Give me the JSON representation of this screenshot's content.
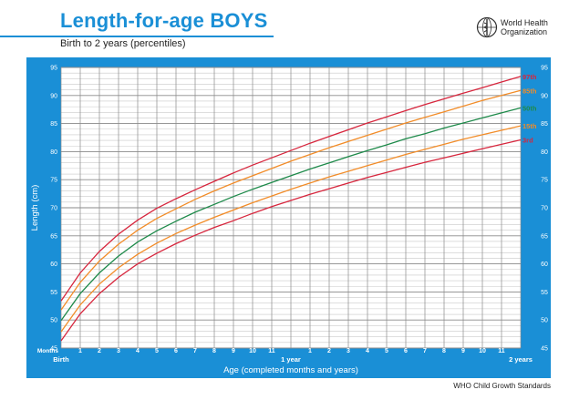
{
  "header": {
    "title": "Length-for-age BOYS",
    "subtitle": "Birth to 2 years (percentiles)",
    "org_line1": "World Health",
    "org_line2": "Organization"
  },
  "footer": {
    "source": "WHO Child Growth Standards"
  },
  "colors": {
    "frame": "#1a8fd6",
    "grid_major": "#8a8a8a",
    "grid_minor": "#c9c9c9",
    "p3": "#d7263d",
    "p15": "#f28c28",
    "p50": "#1e8a4a",
    "p85": "#f28c28",
    "p97": "#d7263d"
  },
  "chart_data": {
    "type": "line",
    "ylabel": "Length (cm)",
    "xlabel": "Age (completed months and years)",
    "months_label": "Months",
    "ylim": [
      45,
      95
    ],
    "yticks": [
      45,
      50,
      55,
      60,
      65,
      70,
      75,
      80,
      85,
      90,
      95
    ],
    "xlim": [
      0,
      24
    ],
    "x_tick_labels": [
      "Birth",
      "1",
      "2",
      "3",
      "4",
      "5",
      "6",
      "7",
      "8",
      "9",
      "10",
      "11",
      "1 year",
      "1",
      "2",
      "3",
      "4",
      "5",
      "6",
      "7",
      "8",
      "9",
      "10",
      "11",
      "2 years"
    ],
    "grid": true,
    "x": [
      0,
      1,
      2,
      3,
      4,
      5,
      6,
      7,
      8,
      9,
      10,
      11,
      12,
      13,
      14,
      15,
      16,
      17,
      18,
      19,
      20,
      21,
      22,
      23,
      24
    ],
    "series": [
      {
        "name": "3rd",
        "color_key": "p3",
        "values": [
          46.3,
          51.1,
          54.7,
          57.6,
          60.0,
          61.9,
          63.6,
          65.1,
          66.5,
          67.7,
          69.0,
          70.2,
          71.3,
          72.4,
          73.4,
          74.4,
          75.4,
          76.3,
          77.2,
          78.1,
          78.9,
          79.7,
          80.5,
          81.3,
          82.1
        ]
      },
      {
        "name": "15th",
        "color_key": "p15",
        "values": [
          47.9,
          52.7,
          56.4,
          59.3,
          61.7,
          63.7,
          65.4,
          66.9,
          68.3,
          69.6,
          70.9,
          72.1,
          73.3,
          74.4,
          75.5,
          76.5,
          77.5,
          78.5,
          79.5,
          80.4,
          81.3,
          82.2,
          83.0,
          83.8,
          84.6
        ]
      },
      {
        "name": "50th",
        "color_key": "p50",
        "values": [
          49.9,
          54.7,
          58.4,
          61.4,
          63.9,
          65.9,
          67.6,
          69.2,
          70.6,
          72.0,
          73.3,
          74.5,
          75.7,
          76.9,
          78.0,
          79.1,
          80.2,
          81.2,
          82.3,
          83.2,
          84.2,
          85.1,
          86.0,
          86.9,
          87.8
        ]
      },
      {
        "name": "85th",
        "color_key": "p85",
        "values": [
          51.8,
          56.7,
          60.5,
          63.5,
          66.0,
          68.1,
          69.8,
          71.5,
          73.0,
          74.4,
          75.7,
          77.0,
          78.3,
          79.5,
          80.7,
          81.8,
          82.9,
          84.0,
          85.1,
          86.1,
          87.1,
          88.1,
          89.1,
          90.0,
          90.9
        ]
      },
      {
        "name": "97th",
        "color_key": "p97",
        "values": [
          53.4,
          58.4,
          62.2,
          65.3,
          67.8,
          69.9,
          71.6,
          73.2,
          74.7,
          76.2,
          77.6,
          78.9,
          80.2,
          81.5,
          82.7,
          83.9,
          85.1,
          86.2,
          87.3,
          88.4,
          89.4,
          90.4,
          91.4,
          92.4,
          93.4
        ]
      }
    ]
  }
}
